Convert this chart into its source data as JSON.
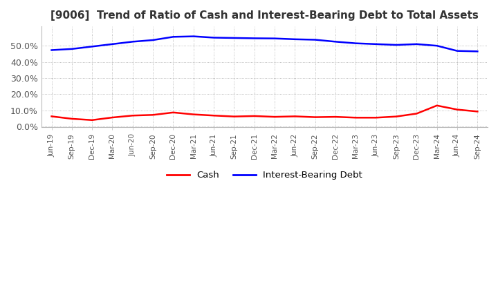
{
  "title": "[9006]  Trend of Ratio of Cash and Interest-Bearing Debt to Total Assets",
  "title_fontsize": 11,
  "ylim": [
    -0.005,
    0.62
  ],
  "yticks": [
    0.0,
    0.1,
    0.2,
    0.3,
    0.4,
    0.5
  ],
  "background_color": "#ffffff",
  "plot_bg_color": "#ffffff",
  "grid_color": "#aaaaaa",
  "legend_items": [
    "Cash",
    "Interest-Bearing Debt"
  ],
  "legend_colors": [
    "#ff0000",
    "#0000ff"
  ],
  "x_labels": [
    "Jun-19",
    "Sep-19",
    "Dec-19",
    "Mar-20",
    "Jun-20",
    "Sep-20",
    "Dec-20",
    "Mar-21",
    "Jun-21",
    "Sep-21",
    "Dec-21",
    "Mar-22",
    "Jun-22",
    "Sep-22",
    "Dec-22",
    "Mar-23",
    "Jun-23",
    "Sep-23",
    "Dec-23",
    "Mar-24",
    "Jun-24",
    "Sep-24"
  ],
  "cash": [
    0.063,
    0.048,
    0.04,
    0.056,
    0.068,
    0.072,
    0.087,
    0.075,
    0.068,
    0.062,
    0.065,
    0.06,
    0.063,
    0.058,
    0.06,
    0.055,
    0.055,
    0.062,
    0.08,
    0.13,
    0.105,
    0.093
  ],
  "interest_bearing_debt": [
    0.473,
    0.48,
    0.495,
    0.51,
    0.525,
    0.535,
    0.555,
    0.558,
    0.55,
    0.548,
    0.546,
    0.545,
    0.54,
    0.537,
    0.525,
    0.515,
    0.51,
    0.505,
    0.51,
    0.5,
    0.468,
    0.465
  ]
}
